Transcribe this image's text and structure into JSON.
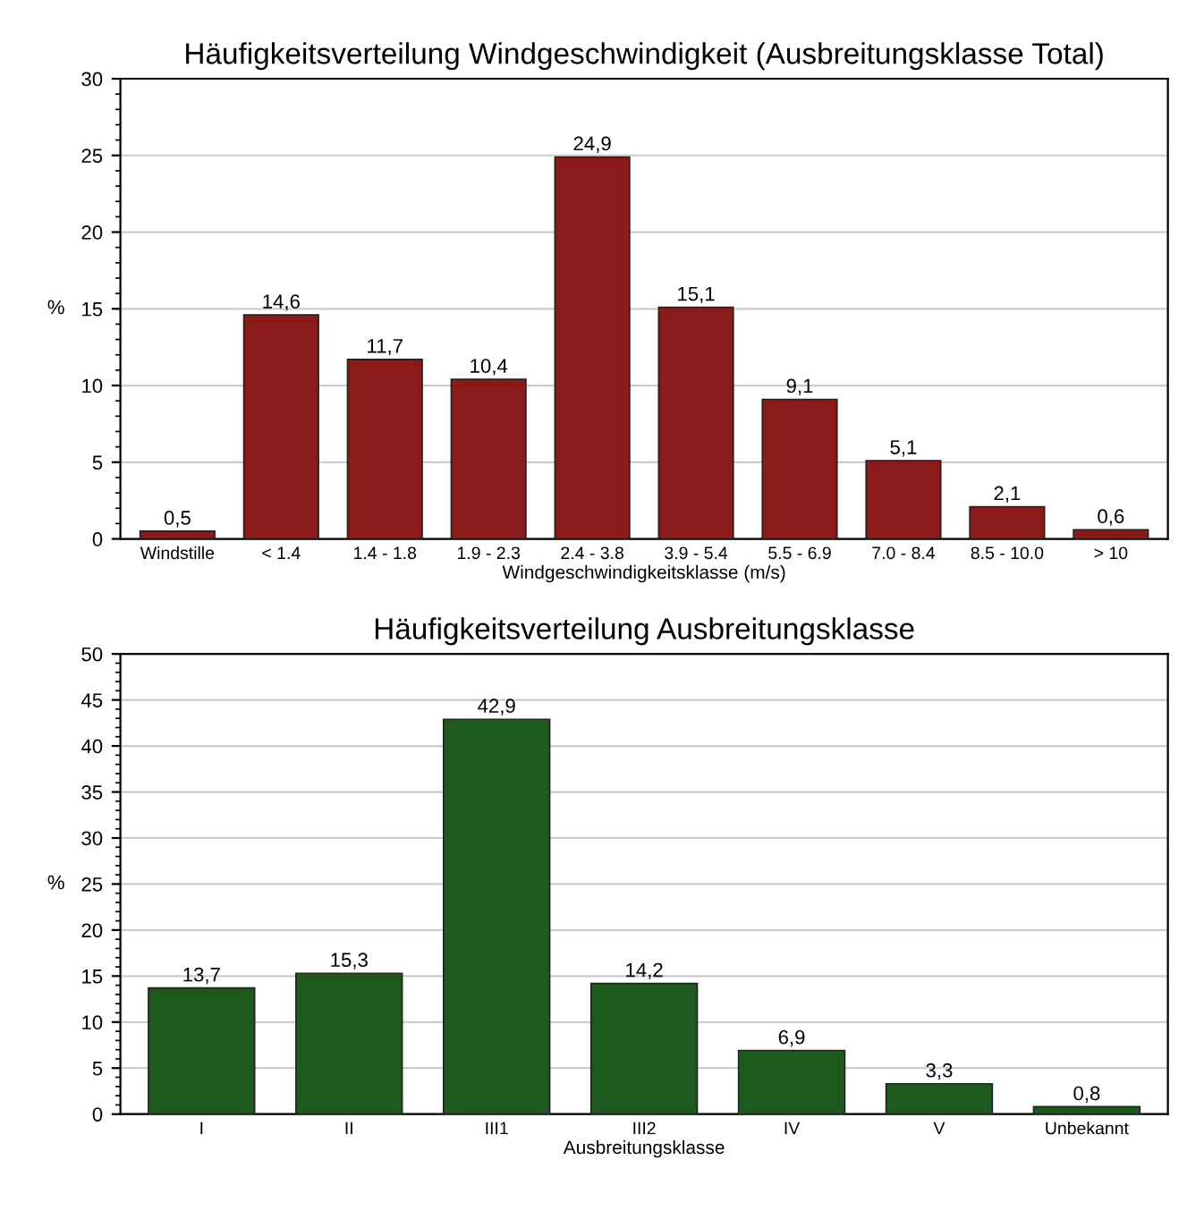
{
  "chart_data": [
    {
      "type": "bar",
      "title": "Häufigkeitsverteilung Windgeschwindigkeit (Ausbreitungsklasse Total)",
      "xlabel": "Windgeschwindigkeitsklasse (m/s)",
      "ylabel": "%",
      "categories": [
        "Windstille",
        "< 1.4",
        "1.4 - 1.8",
        "1.9 - 2.3",
        "2.4 - 3.8",
        "3.9 - 5.4",
        "5.5 - 6.9",
        "7.0 - 8.4",
        "8.5 - 10.0",
        "> 10"
      ],
      "values": [
        0.5,
        14.6,
        11.7,
        10.4,
        24.9,
        15.1,
        9.1,
        5.1,
        2.1,
        0.6
      ],
      "value_labels": [
        "0,5",
        "14,6",
        "11,7",
        "10,4",
        "24,9",
        "15,1",
        "9,1",
        "5,1",
        "2,1",
        "0,6"
      ],
      "color": "#8b1a1a",
      "ylim": [
        0,
        30
      ],
      "yticks": [
        0,
        5,
        10,
        15,
        20,
        25,
        30
      ],
      "grid": "y"
    },
    {
      "type": "bar",
      "title": "Häufigkeitsverteilung Ausbreitungsklasse",
      "xlabel": "Ausbreitungsklasse",
      "ylabel": "%",
      "categories": [
        "I",
        "II",
        "III1",
        "III2",
        "IV",
        "V",
        "Unbekannt"
      ],
      "values": [
        13.7,
        15.3,
        42.9,
        14.2,
        6.9,
        3.3,
        0.8
      ],
      "value_labels": [
        "13,7",
        "15,3",
        "42,9",
        "14,2",
        "6,9",
        "3,3",
        "0,8"
      ],
      "color": "#1e5a1e",
      "ylim": [
        0,
        50
      ],
      "yticks": [
        0,
        5,
        10,
        15,
        20,
        25,
        30,
        35,
        40,
        45,
        50
      ],
      "grid": "y"
    }
  ]
}
